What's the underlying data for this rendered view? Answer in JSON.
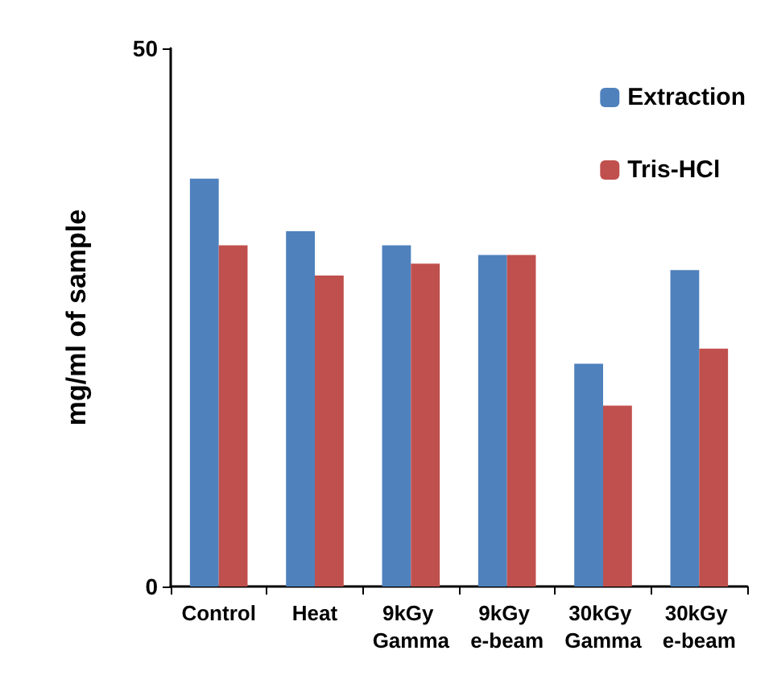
{
  "chart_data": {
    "type": "bar",
    "ylabel": "mg/ml of sample",
    "categories": [
      "Control",
      "Heat",
      "9kGy Gamma",
      "9kGy e-beam",
      "30kGy Gamma",
      "30kGy e-beam"
    ],
    "series": [
      {
        "name": "Extraction",
        "color": "#4f81bd",
        "values": [
          37.9,
          33.0,
          31.7,
          30.8,
          20.7,
          29.4
        ]
      },
      {
        "name": "Tris-HCl",
        "color": "#c0504d",
        "values": [
          31.7,
          28.9,
          30.0,
          30.8,
          16.8,
          22.1
        ]
      }
    ],
    "ylim": [
      0,
      50
    ],
    "yticks": [
      0,
      50
    ],
    "grid": false,
    "legend": "top right"
  }
}
